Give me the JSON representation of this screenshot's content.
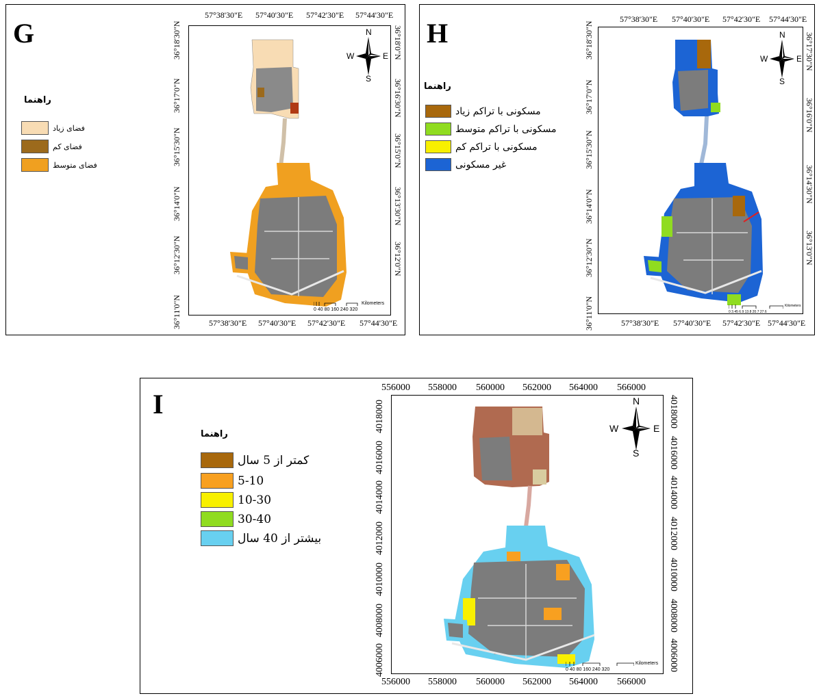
{
  "panels": {
    "G": {
      "label": "G",
      "legend_title": "راهنما",
      "legend": [
        {
          "label": "فضای زیاد",
          "color": "#f8dcb4"
        },
        {
          "label": "فضای کم",
          "color": "#9c6a1c"
        },
        {
          "label": "فضای متوسط",
          "color": "#f0a020"
        }
      ],
      "x_ticks": [
        "57°38'30\"E",
        "57°40'30\"E",
        "57°42'30\"E",
        "57°44'30\"E"
      ],
      "y_ticks_left": [
        "36°18'30\"N",
        "36°17'0\"N",
        "36°15'30\"N",
        "36°14'0\"N",
        "36°12'30\"N",
        "36°11'0\"N"
      ],
      "y_ticks_right": [
        "36°18'0\"N",
        "36°16'30\"N",
        "36°15'0\"N",
        "36°13'30\"N",
        "36°12'0\"N"
      ],
      "scale_numbers": "0 40 80    160   240   320",
      "scale_unit": "Kilometers"
    },
    "H": {
      "label": "H",
      "legend_title": "راهنما",
      "legend": [
        {
          "label": "مسکونی با تراکم زیاد",
          "color": "#a8680c"
        },
        {
          "label": "مسکونی با تراکم متوسط",
          "color": "#90dc20"
        },
        {
          "label": "مسکونی با تراکم کم",
          "color": "#f8f000"
        },
        {
          "label": "غیر مسکونی",
          "color": "#1c64d4"
        }
      ],
      "x_ticks": [
        "57°38'30\"E",
        "57°40'30\"E",
        "57°42'30\"E",
        "57°44'30\"E"
      ],
      "y_ticks_left": [
        "36°18'30\"N",
        "36°17'0\"N",
        "36°15'30\"N",
        "36°14'0\"N",
        "36°12'30\"N",
        "36°11'0\"N"
      ],
      "y_ticks_right": [
        "36°17'30\"N",
        "36°16'0\"N",
        "36°14'30\"N",
        "36°13'0\"N"
      ],
      "scale_numbers": "0  3.45 6.9    13.8    20.7    27.6",
      "scale_unit": "Kilometers"
    },
    "I": {
      "label": "I",
      "legend_title": "راهنما",
      "legend": [
        {
          "label": "کمتر از 5 سال",
          "color": "#a8680c"
        },
        {
          "label": "5-10",
          "color": "#f8a020"
        },
        {
          "label": "10-30",
          "color": "#f8f000"
        },
        {
          "label": "30-40",
          "color": "#90dc20"
        },
        {
          "label": "بیشتر از 40 سال",
          "color": "#68d0f0"
        }
      ],
      "x_ticks": [
        "556000",
        "558000",
        "560000",
        "562000",
        "564000",
        "566000"
      ],
      "y_ticks_left": [
        "4018000",
        "4016000",
        "4014000",
        "4012000",
        "4010000",
        "4008000",
        "4006000"
      ],
      "y_ticks_right": [
        "4018000",
        "4016000",
        "4014000",
        "4012000",
        "4010000",
        "4008000",
        "4006000"
      ],
      "scale_numbers": "0  40 80     160   240   320",
      "scale_unit": "Kilometers"
    }
  },
  "compass": {
    "n": "N",
    "s": "S",
    "e": "E",
    "w": "W"
  }
}
